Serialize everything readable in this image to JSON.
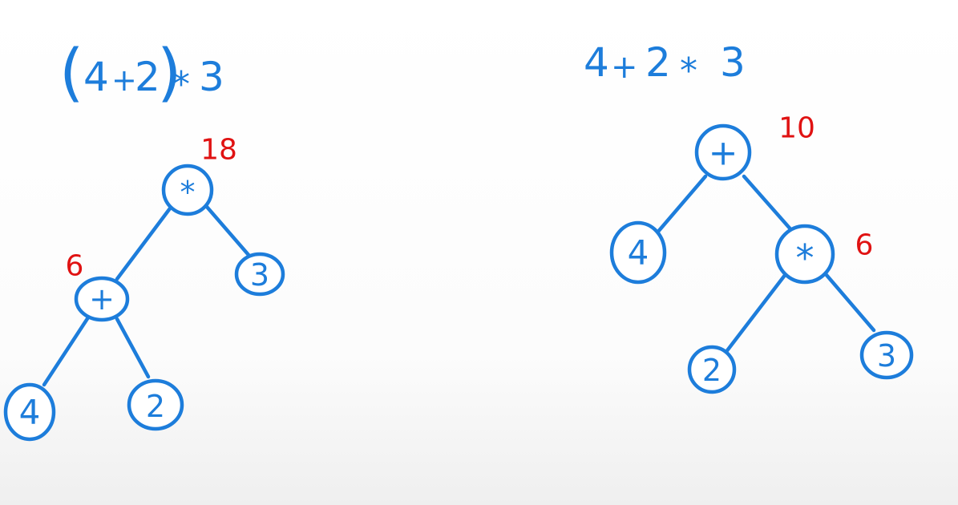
{
  "colors": {
    "ink": "#1d7ddb",
    "value_ink": "#e01212",
    "board": "#ffffff"
  },
  "left_tree": {
    "expression": {
      "open_paren": "(",
      "a": "4",
      "plus": "+",
      "b": "2",
      "close_paren": ")",
      "times": "*",
      "c": "3"
    },
    "nodes": {
      "root": "*",
      "add": "+",
      "three": "3",
      "four": "4",
      "two": "2"
    },
    "values": {
      "root": "18",
      "add": "6"
    }
  },
  "right_tree": {
    "expression": {
      "a": "4",
      "plus": "+",
      "b": "2",
      "times": "*",
      "c": "3"
    },
    "nodes": {
      "root": "+",
      "four": "4",
      "mul": "*",
      "two": "2",
      "three": "3"
    },
    "values": {
      "root": "10",
      "mul": "6"
    }
  }
}
